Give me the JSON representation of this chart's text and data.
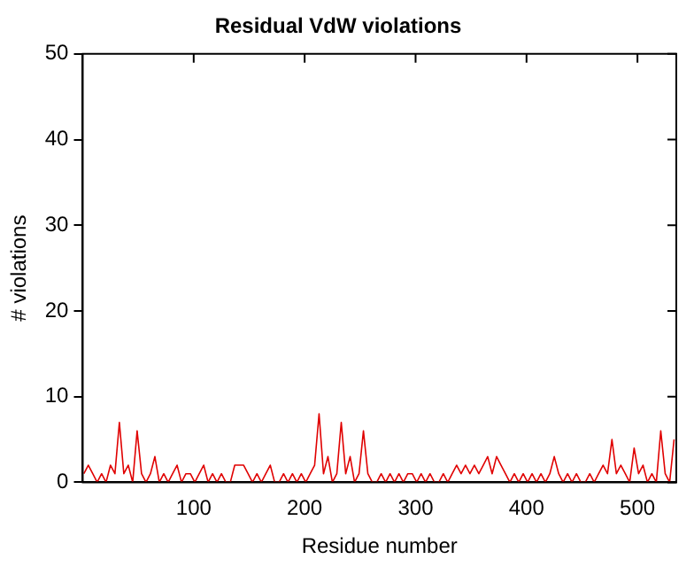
{
  "chart_data": {
    "type": "line",
    "title": "Residual VdW violations",
    "xlabel": "Residue number",
    "ylabel": "# violations",
    "x": [
      1,
      5,
      9,
      13,
      17,
      21,
      25,
      29,
      33,
      37,
      41,
      45,
      49,
      53,
      57,
      61,
      65,
      69,
      73,
      77,
      81,
      85,
      89,
      93,
      97,
      101,
      105,
      109,
      113,
      117,
      121,
      125,
      129,
      133,
      137,
      141,
      145,
      149,
      153,
      157,
      161,
      165,
      169,
      173,
      177,
      181,
      185,
      189,
      193,
      197,
      201,
      205,
      209,
      213,
      217,
      221,
      225,
      229,
      233,
      237,
      241,
      245,
      249,
      253,
      257,
      261,
      265,
      269,
      273,
      277,
      281,
      285,
      289,
      293,
      297,
      301,
      305,
      309,
      313,
      317,
      321,
      325,
      329,
      333,
      337,
      341,
      345,
      349,
      353,
      357,
      361,
      365,
      369,
      373,
      377,
      381,
      385,
      389,
      393,
      397,
      401,
      405,
      409,
      413,
      417,
      421,
      425,
      429,
      433,
      437,
      441,
      445,
      449,
      453,
      457,
      461,
      465,
      469,
      473,
      477,
      481,
      485,
      489,
      493,
      497,
      501,
      505,
      509,
      513,
      517,
      521,
      525,
      529,
      533
    ],
    "series": [
      {
        "color": "#e00000",
        "values": [
          1,
          2,
          1,
          0,
          1,
          0,
          2,
          1,
          7,
          1,
          2,
          0,
          6,
          1,
          0,
          1,
          3,
          0,
          1,
          0,
          1,
          2,
          0,
          1,
          1,
          0,
          1,
          2,
          0,
          1,
          0,
          1,
          0,
          0,
          2,
          2,
          2,
          1,
          0,
          1,
          0,
          1,
          2,
          0,
          0,
          1,
          0,
          1,
          0,
          1,
          0,
          1,
          2,
          8,
          1,
          3,
          0,
          1,
          7,
          1,
          3,
          0,
          1,
          6,
          1,
          0,
          0,
          1,
          0,
          1,
          0,
          1,
          0,
          1,
          1,
          0,
          1,
          0,
          1,
          0,
          0,
          1,
          0,
          1,
          2,
          1,
          2,
          1,
          2,
          1,
          2,
          3,
          1,
          3,
          2,
          1,
          0,
          1,
          0,
          1,
          0,
          1,
          0,
          1,
          0,
          1,
          3,
          1,
          0,
          1,
          0,
          1,
          0,
          0,
          1,
          0,
          1,
          2,
          1,
          5,
          1,
          2,
          1,
          0,
          4,
          1,
          2,
          0,
          1,
          0,
          6,
          1,
          0,
          5
        ]
      }
    ],
    "xlim": [
      0,
      535
    ],
    "xticks": [
      100,
      200,
      300,
      400,
      500
    ],
    "ylim": [
      0,
      50
    ],
    "yticks": [
      0,
      10,
      20,
      30,
      40,
      50
    ],
    "grid": false,
    "legend": false,
    "marker": "none",
    "line_style": "solid"
  }
}
